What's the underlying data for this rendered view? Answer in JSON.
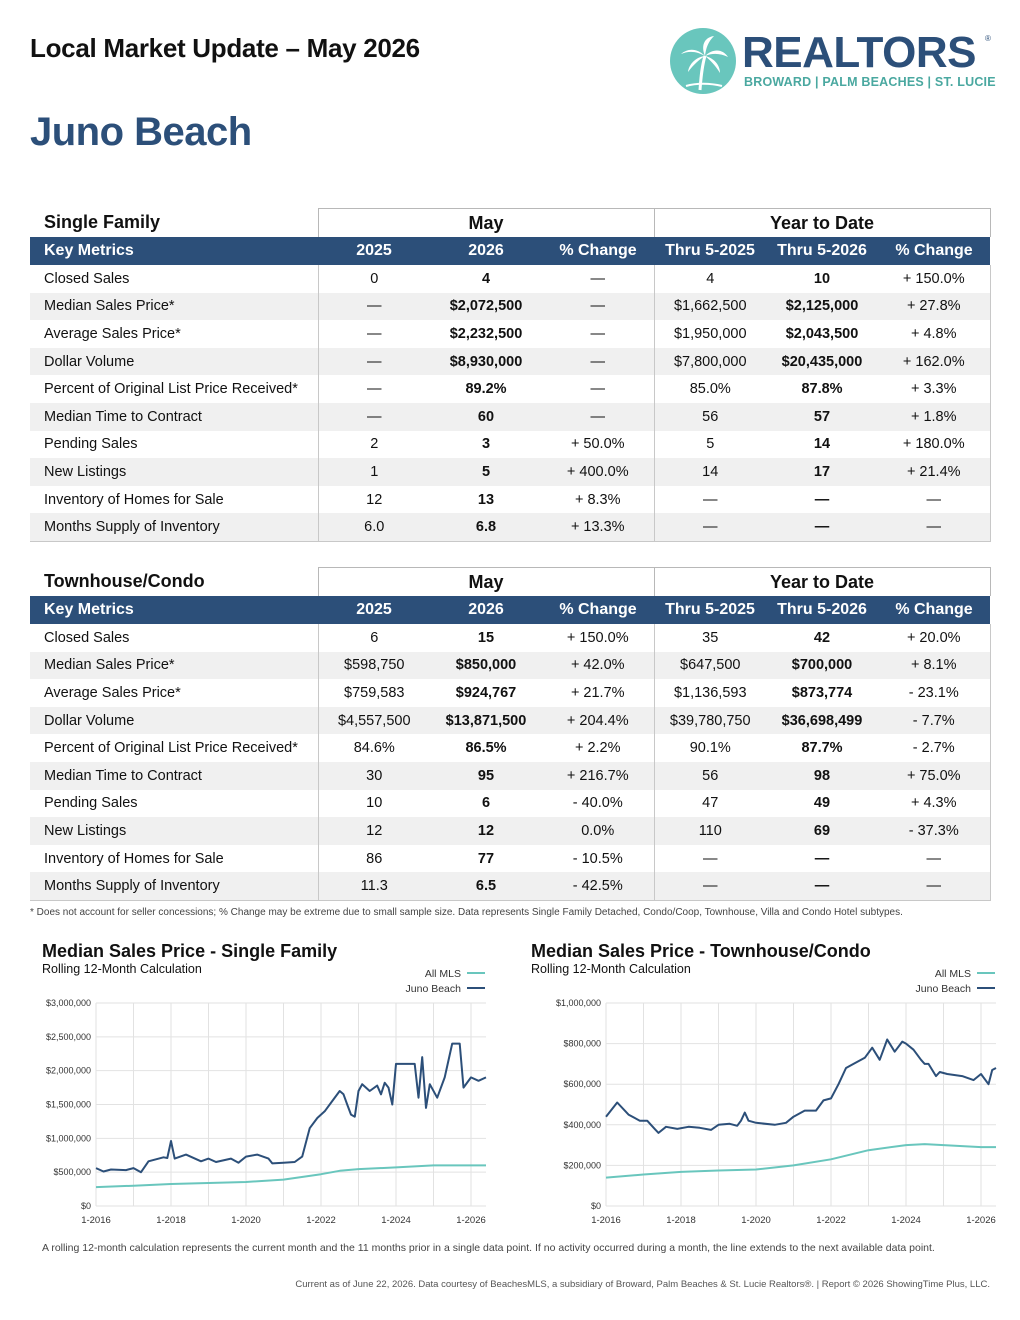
{
  "header": {
    "title": "Local Market Update – May 2026",
    "area": "Juno Beach",
    "logo_word": "REALTORS",
    "logo_sub": "BROWARD | PALM BEACHES | ST. LUCIE",
    "logo_reg": "®"
  },
  "tables": [
    {
      "section": "Single Family",
      "group_month": "May",
      "group_ytd": "Year to Date",
      "columns": [
        "Key Metrics",
        "2025",
        "2026",
        "% Change",
        "Thru 5-2025",
        "Thru 5-2026",
        "% Change"
      ],
      "rows": [
        [
          "Closed Sales",
          "0",
          "4",
          "—",
          "4",
          "10",
          "+ 150.0%"
        ],
        [
          "Median Sales Price*",
          "—",
          "$2,072,500",
          "—",
          "$1,662,500",
          "$2,125,000",
          "+ 27.8%"
        ],
        [
          "Average Sales Price*",
          "—",
          "$2,232,500",
          "—",
          "$1,950,000",
          "$2,043,500",
          "+ 4.8%"
        ],
        [
          "Dollar Volume",
          "—",
          "$8,930,000",
          "—",
          "$7,800,000",
          "$20,435,000",
          "+ 162.0%"
        ],
        [
          "Percent of Original List Price Received*",
          "—",
          "89.2%",
          "—",
          "85.0%",
          "87.8%",
          "+ 3.3%"
        ],
        [
          "Median Time to Contract",
          "—",
          "60",
          "—",
          "56",
          "57",
          "+ 1.8%"
        ],
        [
          "Pending Sales",
          "2",
          "3",
          "+ 50.0%",
          "5",
          "14",
          "+ 180.0%"
        ],
        [
          "New Listings",
          "1",
          "5",
          "+ 400.0%",
          "14",
          "17",
          "+ 21.4%"
        ],
        [
          "Inventory of Homes for Sale",
          "12",
          "13",
          "+ 8.3%",
          "—",
          "—",
          "—"
        ],
        [
          "Months Supply of Inventory",
          "6.0",
          "6.8",
          "+ 13.3%",
          "—",
          "—",
          "—"
        ]
      ]
    },
    {
      "section": "Townhouse/Condo",
      "group_month": "May",
      "group_ytd": "Year to Date",
      "columns": [
        "Key Metrics",
        "2025",
        "2026",
        "% Change",
        "Thru 5-2025",
        "Thru 5-2026",
        "% Change"
      ],
      "rows": [
        [
          "Closed Sales",
          "6",
          "15",
          "+ 150.0%",
          "35",
          "42",
          "+ 20.0%"
        ],
        [
          "Median Sales Price*",
          "$598,750",
          "$850,000",
          "+ 42.0%",
          "$647,500",
          "$700,000",
          "+ 8.1%"
        ],
        [
          "Average Sales Price*",
          "$759,583",
          "$924,767",
          "+ 21.7%",
          "$1,136,593",
          "$873,774",
          "- 23.1%"
        ],
        [
          "Dollar Volume",
          "$4,557,500",
          "$13,871,500",
          "+ 204.4%",
          "$39,780,750",
          "$36,698,499",
          "- 7.7%"
        ],
        [
          "Percent of Original List Price Received*",
          "84.6%",
          "86.5%",
          "+ 2.2%",
          "90.1%",
          "87.7%",
          "- 2.7%"
        ],
        [
          "Median Time to Contract",
          "30",
          "95",
          "+ 216.7%",
          "56",
          "98",
          "+ 75.0%"
        ],
        [
          "Pending Sales",
          "10",
          "6",
          "- 40.0%",
          "47",
          "49",
          "+ 4.3%"
        ],
        [
          "New Listings",
          "12",
          "12",
          "0.0%",
          "110",
          "69",
          "- 37.3%"
        ],
        [
          "Inventory of Homes for Sale",
          "86",
          "77",
          "- 10.5%",
          "—",
          "—",
          "—"
        ],
        [
          "Months Supply of Inventory",
          "11.3",
          "6.5",
          "- 42.5%",
          "—",
          "—",
          "—"
        ]
      ]
    }
  ],
  "footnote": "* Does not account for seller concessions; % Change may be extreme due to small sample size. Data represents Single Family Detached, Condo/Coop, Townhouse, Villa and Condo Hotel subtypes.",
  "colors": {
    "all_mls": "#69c6bd",
    "local": "#2c4f79",
    "band": "#2c4f79"
  },
  "chart_data": [
    {
      "type": "line",
      "title": "Median Sales Price - Single Family",
      "subtitle": "Rolling 12-Month Calculation",
      "x_ticks": [
        "1-2016",
        "1-2018",
        "1-2020",
        "1-2022",
        "1-2024",
        "1-2026"
      ],
      "y_ticks": [
        "$0",
        "$500,000",
        "$1,000,000",
        "$1,500,000",
        "$2,000,000",
        "$2,500,000",
        "$3,000,000"
      ],
      "ylim": [
        0,
        3000000
      ],
      "grid": true,
      "legend": "top-right",
      "series": [
        {
          "name": "All MLS",
          "points": [
            [
              2016.0,
              280000
            ],
            [
              2017.0,
              300000
            ],
            [
              2018.0,
              325000
            ],
            [
              2019.0,
              340000
            ],
            [
              2020.0,
              355000
            ],
            [
              2021.0,
              390000
            ],
            [
              2022.0,
              470000
            ],
            [
              2022.5,
              520000
            ],
            [
              2023.0,
              545000
            ],
            [
              2024.0,
              570000
            ],
            [
              2025.0,
              600000
            ],
            [
              2025.8,
              600000
            ],
            [
              2026.4,
              600000
            ]
          ]
        },
        {
          "name": "Juno Beach",
          "points": [
            [
              2016.0,
              560000
            ],
            [
              2016.2,
              510000
            ],
            [
              2016.4,
              540000
            ],
            [
              2016.8,
              530000
            ],
            [
              2017.0,
              560000
            ],
            [
              2017.2,
              500000
            ],
            [
              2017.4,
              660000
            ],
            [
              2017.8,
              720000
            ],
            [
              2017.9,
              710000
            ],
            [
              2018.0,
              960000
            ],
            [
              2018.1,
              700000
            ],
            [
              2018.4,
              760000
            ],
            [
              2018.8,
              660000
            ],
            [
              2019.0,
              700000
            ],
            [
              2019.2,
              650000
            ],
            [
              2019.6,
              700000
            ],
            [
              2019.8,
              640000
            ],
            [
              2020.0,
              730000
            ],
            [
              2020.3,
              760000
            ],
            [
              2020.6,
              700000
            ],
            [
              2020.7,
              630000
            ],
            [
              2021.0,
              640000
            ],
            [
              2021.3,
              650000
            ],
            [
              2021.5,
              730000
            ],
            [
              2021.7,
              1150000
            ],
            [
              2021.9,
              1300000
            ],
            [
              2022.1,
              1400000
            ],
            [
              2022.3,
              1550000
            ],
            [
              2022.5,
              1700000
            ],
            [
              2022.6,
              1650000
            ],
            [
              2022.7,
              1500000
            ],
            [
              2022.8,
              1350000
            ],
            [
              2022.9,
              1320000
            ],
            [
              2023.0,
              1700000
            ],
            [
              2023.1,
              1800000
            ],
            [
              2023.3,
              1700000
            ],
            [
              2023.5,
              1780000
            ],
            [
              2023.6,
              1650000
            ],
            [
              2023.7,
              1820000
            ],
            [
              2023.8,
              1750000
            ],
            [
              2023.9,
              1500000
            ],
            [
              2024.0,
              2100000
            ],
            [
              2024.5,
              2100000
            ],
            [
              2024.6,
              1600000
            ],
            [
              2024.7,
              2200000
            ],
            [
              2024.8,
              1450000
            ],
            [
              2024.9,
              1800000
            ],
            [
              2025.1,
              1600000
            ],
            [
              2025.3,
              1900000
            ],
            [
              2025.5,
              2400000
            ],
            [
              2025.7,
              2400000
            ],
            [
              2025.8,
              1750000
            ],
            [
              2026.0,
              1900000
            ],
            [
              2026.2,
              1850000
            ],
            [
              2026.4,
              1900000
            ]
          ]
        }
      ]
    },
    {
      "type": "line",
      "title": "Median Sales Price - Townhouse/Condo",
      "subtitle": "Rolling 12-Month Calculation",
      "x_ticks": [
        "1-2016",
        "1-2018",
        "1-2020",
        "1-2022",
        "1-2024",
        "1-2026"
      ],
      "y_ticks": [
        "$0",
        "$200,000",
        "$400,000",
        "$600,000",
        "$800,000",
        "$1,000,000"
      ],
      "ylim": [
        0,
        1000000
      ],
      "grid": true,
      "legend": "top-right",
      "series": [
        {
          "name": "All MLS",
          "points": [
            [
              2016.0,
              140000
            ],
            [
              2017.0,
              155000
            ],
            [
              2018.0,
              168000
            ],
            [
              2019.0,
              175000
            ],
            [
              2020.0,
              180000
            ],
            [
              2021.0,
              200000
            ],
            [
              2022.0,
              230000
            ],
            [
              2023.0,
              275000
            ],
            [
              2024.0,
              300000
            ],
            [
              2024.5,
              305000
            ],
            [
              2025.0,
              300000
            ],
            [
              2026.0,
              290000
            ],
            [
              2026.4,
              290000
            ]
          ]
        },
        {
          "name": "Juno Beach",
          "points": [
            [
              2016.0,
              440000
            ],
            [
              2016.3,
              510000
            ],
            [
              2016.6,
              450000
            ],
            [
              2016.9,
              420000
            ],
            [
              2017.1,
              420000
            ],
            [
              2017.3,
              380000
            ],
            [
              2017.4,
              360000
            ],
            [
              2017.6,
              390000
            ],
            [
              2017.9,
              380000
            ],
            [
              2018.2,
              390000
            ],
            [
              2018.5,
              385000
            ],
            [
              2018.8,
              375000
            ],
            [
              2019.0,
              400000
            ],
            [
              2019.3,
              405000
            ],
            [
              2019.5,
              395000
            ],
            [
              2019.6,
              420000
            ],
            [
              2019.7,
              460000
            ],
            [
              2019.8,
              420000
            ],
            [
              2020.0,
              410000
            ],
            [
              2020.5,
              400000
            ],
            [
              2020.8,
              410000
            ],
            [
              2021.0,
              440000
            ],
            [
              2021.3,
              470000
            ],
            [
              2021.6,
              470000
            ],
            [
              2021.8,
              520000
            ],
            [
              2022.0,
              530000
            ],
            [
              2022.2,
              600000
            ],
            [
              2022.4,
              680000
            ],
            [
              2022.6,
              700000
            ],
            [
              2022.9,
              730000
            ],
            [
              2023.1,
              780000
            ],
            [
              2023.3,
              720000
            ],
            [
              2023.5,
              820000
            ],
            [
              2023.7,
              760000
            ],
            [
              2023.9,
              810000
            ],
            [
              2024.0,
              800000
            ],
            [
              2024.2,
              770000
            ],
            [
              2024.4,
              720000
            ],
            [
              2024.5,
              700000
            ],
            [
              2024.6,
              700000
            ],
            [
              2024.8,
              640000
            ],
            [
              2024.9,
              660000
            ],
            [
              2025.1,
              650000
            ],
            [
              2025.5,
              640000
            ],
            [
              2025.8,
              620000
            ],
            [
              2026.0,
              650000
            ],
            [
              2026.2,
              600000
            ],
            [
              2026.3,
              670000
            ],
            [
              2026.4,
              680000
            ]
          ]
        }
      ]
    }
  ],
  "chart_note": "A rolling 12-month calculation represents the current month and the 11 months prior in a single data point. If no activity occurred during a month, the line extends to the next available data point.",
  "bottom_footer": "Current as of June 22, 2026. Data courtesy of BeachesMLS, a subsidiary of Broward, Palm Beaches & St. Lucie Realtors®. | Report © 2026 ShowingTime Plus, LLC."
}
